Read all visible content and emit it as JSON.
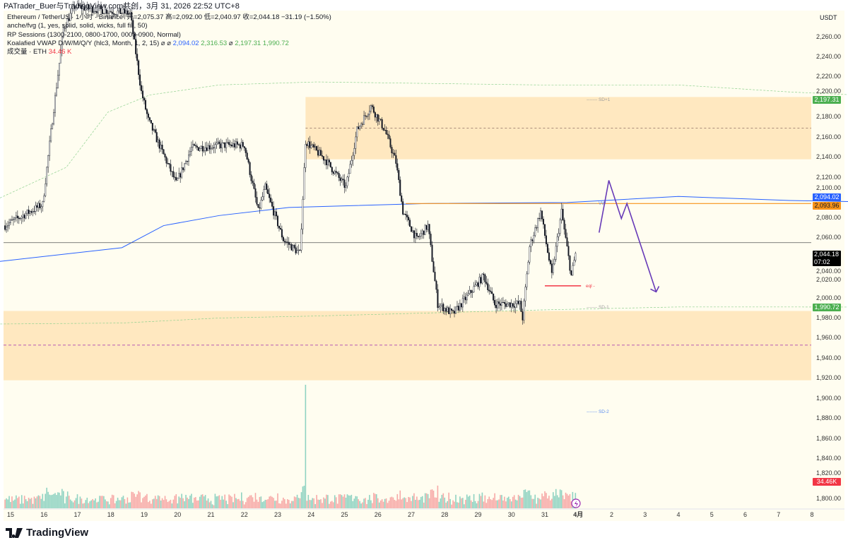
{
  "header": {
    "attribution": "PATrader_Buer与TradingView.com共创，3月 31, 2026 22:52 UTC+8"
  },
  "legend": {
    "symbol": "Ethereum / TetherUS · 1小时 · Binance",
    "ohlc": "开=2,075.37 高=2,092.00 低=2,040.97 收=2,044.18 −31.19 (−1.50%)",
    "indicator1": "anche/fvg (1, yes, solid, solid, wicks, full fill, 50)",
    "indicator2": "RP Sessions (1300-2100, 0800-1700, 0000-0900, Normal)",
    "indicator3": "Koalafied VWAP D/W/M/Q/Y (hlc3, Month, 1, 2, 15) ⌀ ⌀",
    "vwap_values": [
      "2,094.02",
      "2,316.53",
      "⌀",
      "2,197.31",
      "1,990.72"
    ],
    "volume_label": "成交量 · ETH",
    "volume_value": "34.46 K"
  },
  "axis": {
    "currency": "USDT",
    "price_ticks": [
      "2,260.00",
      "2,240.00",
      "2,220.00",
      "2,200.00",
      "2,180.00",
      "2,160.00",
      "2,140.00",
      "2,120.00",
      "2,100.00",
      "2,080.00",
      "2,060.00",
      "2,040.00",
      "2,020.00",
      "2,000.00",
      "1,980.00",
      "1,960.00",
      "1,940.00",
      "1,920.00",
      "1,900.00",
      "1,880.00",
      "1,860.00",
      "1,840.00",
      "1,820.00",
      "1,800.00"
    ],
    "time_ticks": [
      "15",
      "16",
      "17",
      "18",
      "19",
      "20",
      "21",
      "22",
      "23",
      "24",
      "25",
      "26",
      "27",
      "28",
      "29",
      "30",
      "31",
      "4月",
      "2",
      "3",
      "4",
      "5",
      "6",
      "7",
      "8"
    ]
  },
  "price_labels": {
    "vwap": "2,094.02",
    "level": "2,093.96",
    "last": "2,044.18",
    "countdown": "07:02",
    "sd_plus1": "2,197.31",
    "sd_minus1": "1,990.72",
    "volume": "34.46K"
  },
  "annotations": {
    "sd_plus1": "SD+1",
    "vwap": "VW",
    "sd_minus1": "SD-1",
    "sd_minus2": "SD-2",
    "eql": "eql"
  },
  "colors": {
    "up": "#131722",
    "down": "#131722",
    "vol_up": "#8fd3c2",
    "vol_down": "#f7a9a7",
    "zone": "#ffe8c0",
    "vwap": "#2962ff",
    "level": "#f7931a",
    "sd": "#8fd18f",
    "projection": "#673ab7",
    "eql": "#f23645"
  },
  "footer": {
    "brand": "TradingView"
  },
  "chart_data": {
    "type": "candlestick",
    "timeframe": "1h",
    "price_path": [
      [
        "2026-03-14T20:00",
        2072
      ],
      [
        "2026-03-15T23:00",
        2093
      ],
      [
        "2026-03-16T06:00",
        2177
      ],
      [
        "2026-03-16T14:00",
        2268
      ],
      [
        "2026-03-16T22:00",
        2290
      ],
      [
        "2026-03-18T14:00",
        2283
      ],
      [
        "2026-03-18T22:00",
        2205
      ],
      [
        "2026-03-19T03:00",
        2177
      ],
      [
        "2026-03-19T23:00",
        2114
      ],
      [
        "2026-03-20T10:00",
        2149
      ],
      [
        "2026-03-21T08:00",
        2152
      ],
      [
        "2026-03-22T00:00",
        2152
      ],
      [
        "2026-03-22T10:00",
        2086
      ],
      [
        "2026-03-22T15:00",
        2110
      ],
      [
        "2026-03-23T04:00",
        2058
      ],
      [
        "2026-03-23T16:00",
        2044
      ],
      [
        "2026-03-23T20:00",
        2156
      ],
      [
        "2026-03-24T10:00",
        2138
      ],
      [
        "2026-03-25T01:00",
        2110
      ],
      [
        "2026-03-25T09:00",
        2167
      ],
      [
        "2026-03-25T19:00",
        2191
      ],
      [
        "2026-03-26T05:00",
        2167
      ],
      [
        "2026-03-26T13:00",
        2135
      ],
      [
        "2026-03-26T18:00",
        2086
      ],
      [
        "2026-03-27T04:00",
        2058
      ],
      [
        "2026-03-27T12:00",
        2072
      ],
      [
        "2026-03-27T19:00",
        1994
      ],
      [
        "2026-03-28T06:00",
        1984
      ],
      [
        "2026-03-28T16:00",
        2001
      ],
      [
        "2026-03-29T04:00",
        2022
      ],
      [
        "2026-03-29T12:00",
        1994
      ],
      [
        "2026-03-30T06:00",
        1994
      ],
      [
        "2026-03-30T08:00",
        1980
      ],
      [
        "2026-03-30T13:00",
        2051
      ],
      [
        "2026-03-30T21:00",
        2086
      ],
      [
        "2026-03-31T05:00",
        2022
      ],
      [
        "2026-03-31T12:00",
        2086
      ],
      [
        "2026-03-31T19:00",
        2022
      ],
      [
        "2026-03-31T22:00",
        2044
      ]
    ],
    "ylim": [
      1790,
      2290
    ],
    "supply_zone": {
      "start": "2026-03-23T20:00",
      "top": 2200,
      "bottom": 2138,
      "mid": 2169
    },
    "demand_zone": {
      "top": 1987,
      "bottom": 1918,
      "mid": 1953
    },
    "level_line": {
      "start": "2026-03-26T20:00",
      "price": 2093.96
    },
    "gray_line": 2055,
    "eql": {
      "start": "2026-03-31T00:00",
      "end": "2026-04-01T02:00",
      "price": 2012
    },
    "projection": [
      [
        "2026-04-01T15:00",
        2065
      ],
      [
        "2026-04-01T22:00",
        2117
      ],
      [
        "2026-04-02T07:00",
        2079
      ],
      [
        "2026-04-02T11:00",
        2094
      ],
      [
        "2026-04-03T08:00",
        2006
      ]
    ]
  }
}
